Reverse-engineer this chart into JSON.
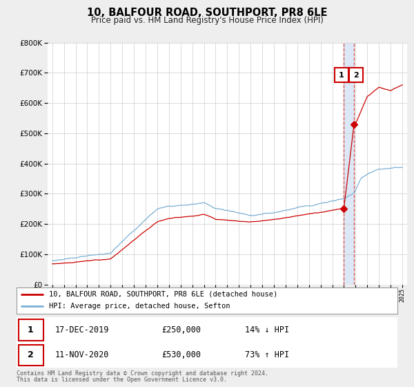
{
  "title": "10, BALFOUR ROAD, SOUTHPORT, PR8 6LE",
  "subtitle": "Price paid vs. HM Land Registry's House Price Index (HPI)",
  "bg_color": "#eeeeee",
  "plot_bg_color": "#ffffff",
  "grid_color": "#cccccc",
  "red_line_color": "#cc0000",
  "blue_line_color": "#7aafd4",
  "marker1_date": 2019.96,
  "marker1_price": 250000,
  "marker1_label": "17-DEC-2019",
  "marker1_value": "£250,000",
  "marker1_hpi": "14% ↓ HPI",
  "marker2_date": 2020.87,
  "marker2_price": 530000,
  "marker2_label": "11-NOV-2020",
  "marker2_value": "£530,000",
  "marker2_hpi": "73% ↑ HPI",
  "vline_color": "#dd2222",
  "highlight_color": "#dce8f5",
  "ylim_max": 800000,
  "legend_line1": "10, BALFOUR ROAD, SOUTHPORT, PR8 6LE (detached house)",
  "legend_line2": "HPI: Average price, detached house, Sefton",
  "footer1": "Contains HM Land Registry data © Crown copyright and database right 2024.",
  "footer2": "This data is licensed under the Open Government Licence v3.0."
}
